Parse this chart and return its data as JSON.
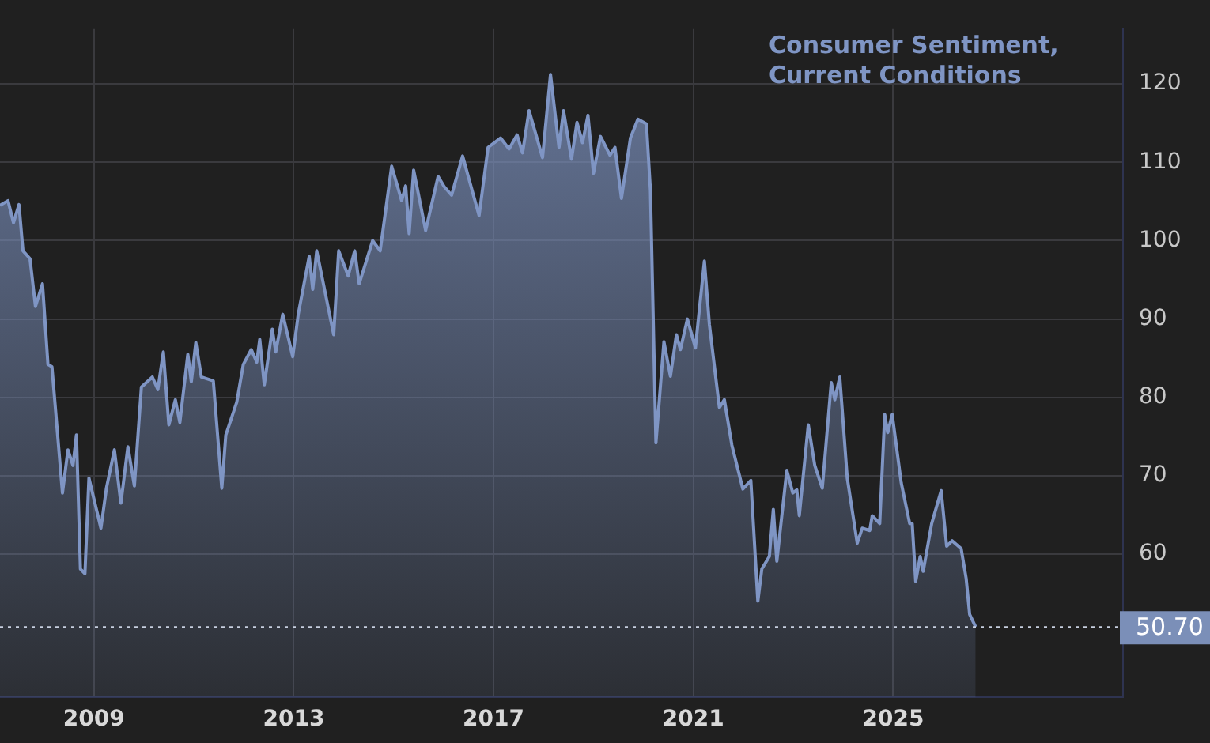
{
  "chart_data": {
    "type": "area",
    "title": "Consumer Sentiment, Current Conditions",
    "x": [
      2007.12,
      2007.28,
      2007.39,
      2007.5,
      2007.58,
      2007.72,
      2007.83,
      2007.97,
      2008.08,
      2008.16,
      2008.37,
      2008.48,
      2008.58,
      2008.65,
      2008.73,
      2008.82,
      2008.9,
      2009.14,
      2009.25,
      2009.41,
      2009.54,
      2009.68,
      2009.81,
      2009.95,
      2010.17,
      2010.28,
      2010.39,
      2010.5,
      2010.63,
      2010.72,
      2010.88,
      2010.95,
      2011.04,
      2011.15,
      2011.39,
      2011.56,
      2011.64,
      2011.86,
      2011.99,
      2012.15,
      2012.26,
      2012.32,
      2012.41,
      2012.57,
      2012.64,
      2012.78,
      2012.98,
      2013.09,
      2013.31,
      2013.38,
      2013.46,
      2013.8,
      2013.9,
      2014.09,
      2014.22,
      2014.31,
      2014.58,
      2014.73,
      2014.96,
      2015.16,
      2015.24,
      2015.31,
      2015.4,
      2015.64,
      2015.89,
      2016.01,
      2016.16,
      2016.38,
      2016.71,
      2016.89,
      2017.14,
      2017.31,
      2017.47,
      2017.58,
      2017.71,
      2017.98,
      2018.14,
      2018.31,
      2018.4,
      2018.56,
      2018.67,
      2018.78,
      2018.89,
      2019.0,
      2019.14,
      2019.33,
      2019.43,
      2019.56,
      2019.74,
      2019.89,
      2020.06,
      2020.14,
      2020.25,
      2020.41,
      2020.54,
      2020.66,
      2020.74,
      2020.88,
      2021.04,
      2021.22,
      2021.32,
      2021.52,
      2021.62,
      2021.77,
      2021.99,
      2022.15,
      2022.29,
      2022.37,
      2022.52,
      2022.6,
      2022.67,
      2022.87,
      2022.99,
      2023.07,
      2023.12,
      2023.3,
      2023.43,
      2023.58,
      2023.76,
      2023.83,
      2023.93,
      2024.08,
      2024.28,
      2024.38,
      2024.53,
      2024.58,
      2024.73,
      2024.83,
      2024.89,
      2024.98,
      2025.16,
      2025.33,
      2025.38,
      2025.45,
      2025.54,
      2025.6,
      2025.77,
      2025.96,
      2026.07,
      2026.18,
      2026.36,
      2026.46,
      2026.53,
      2026.65
    ],
    "series": [
      {
        "color": "#7f95c4",
        "values": [
          104.5,
          105.1,
          102.3,
          104.6,
          98.7,
          97.7,
          91.6,
          94.5,
          84.2,
          83.9,
          67.8,
          73.3,
          71.3,
          75.2,
          58.1,
          57.5,
          69.7,
          63.3,
          68.4,
          73.3,
          66.5,
          73.7,
          68.7,
          81.3,
          82.6,
          81.0,
          85.8,
          76.5,
          79.7,
          76.8,
          85.5,
          82.0,
          87.0,
          82.6,
          82.1,
          68.4,
          75.2,
          79.4,
          84.2,
          86.1,
          84.5,
          87.4,
          81.6,
          88.7,
          85.8,
          90.6,
          85.2,
          90.6,
          98.0,
          93.8,
          98.7,
          88.0,
          98.7,
          95.5,
          98.7,
          94.5,
          100.0,
          98.7,
          109.5,
          105.1,
          107.0,
          100.9,
          109.0,
          101.3,
          108.2,
          106.9,
          105.8,
          110.8,
          103.2,
          111.9,
          113.1,
          111.7,
          113.5,
          111.2,
          116.6,
          110.6,
          121.2,
          111.9,
          116.6,
          110.4,
          115.1,
          112.5,
          116.0,
          108.6,
          113.3,
          110.9,
          111.9,
          105.4,
          113.1,
          115.5,
          114.9,
          106.4,
          74.2,
          87.1,
          82.7,
          88.0,
          86.1,
          90.0,
          86.3,
          97.4,
          89.3,
          78.7,
          79.7,
          73.9,
          68.3,
          69.4,
          54.0,
          58.1,
          59.7,
          65.7,
          59.1,
          70.7,
          67.8,
          68.2,
          64.9,
          76.5,
          71.3,
          68.4,
          81.9,
          79.7,
          82.6,
          69.7,
          61.4,
          63.3,
          63.0,
          64.9,
          63.9,
          77.8,
          75.5,
          77.8,
          69.1,
          63.9,
          63.9,
          56.5,
          59.7,
          57.8,
          63.9,
          68.1,
          61.0,
          61.7,
          60.7,
          56.9,
          52.3,
          50.7
        ]
      }
    ],
    "xlim": [
      2007.12,
      2029.6
    ],
    "xticks": [
      2009,
      2013,
      2017,
      2021,
      2025
    ],
    "ylim": [
      41.7,
      127
    ],
    "yticks": [
      60,
      70,
      80,
      90,
      100,
      110,
      120
    ],
    "grid": true,
    "legend": false,
    "marker": "none",
    "line_style": "solid",
    "ref_lines": [
      {
        "axis": "y",
        "value": 50.7,
        "label": "50.70",
        "color": "#c8d0e0",
        "line_style": "dotted"
      }
    ]
  }
}
